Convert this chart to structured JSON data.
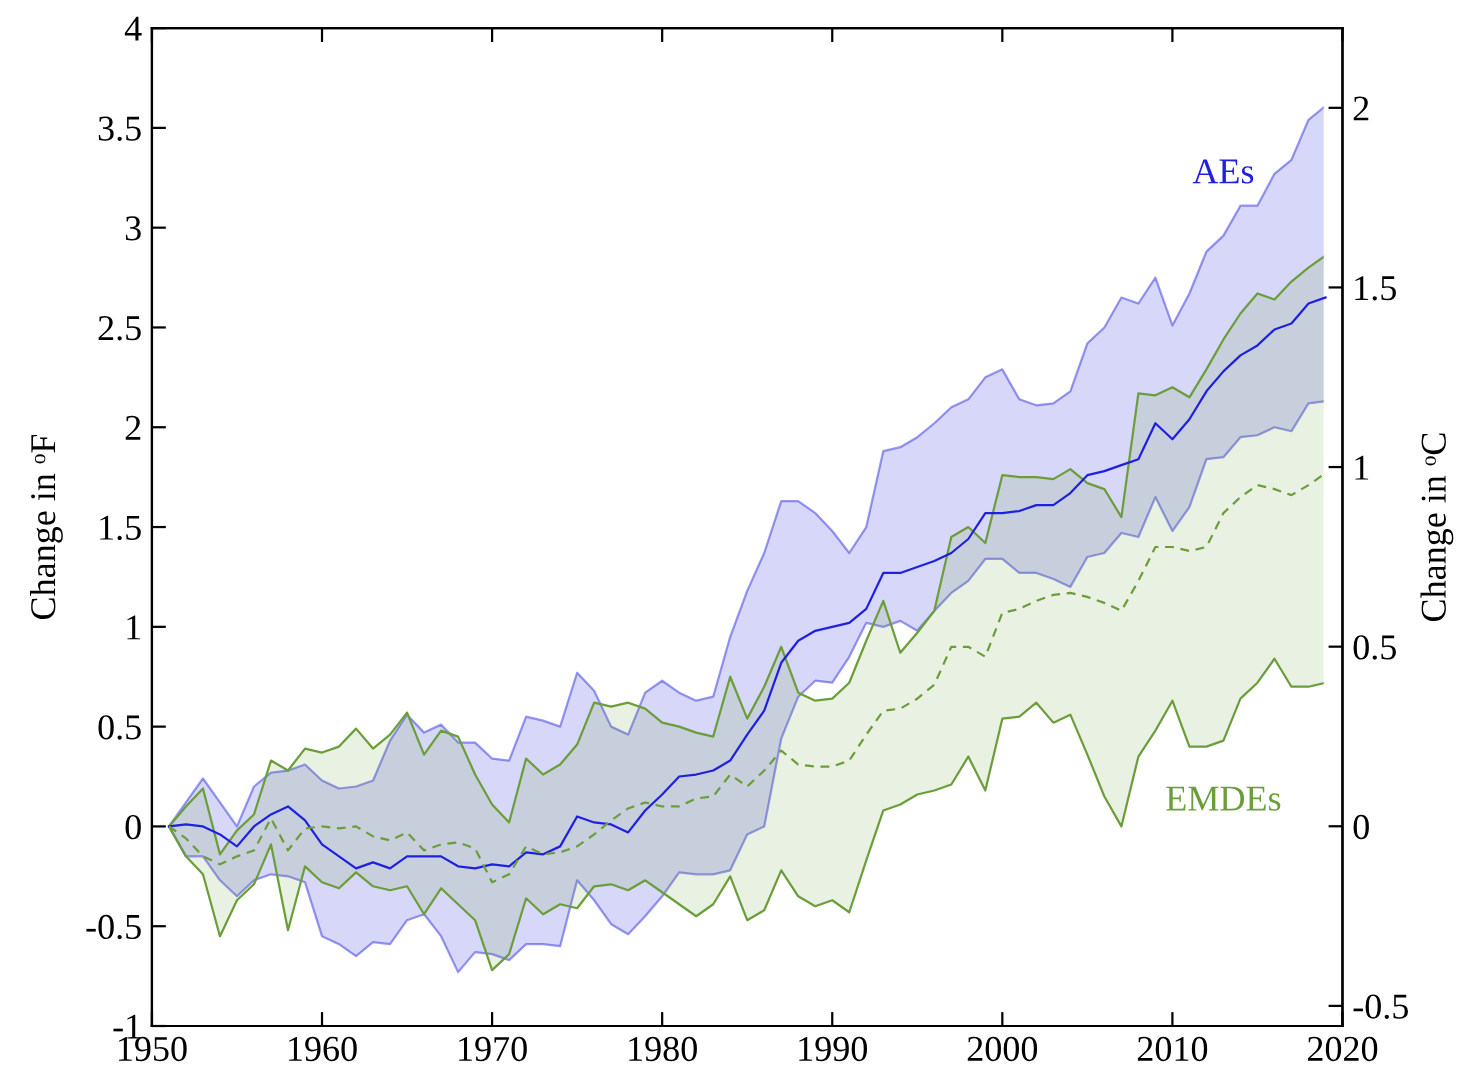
{
  "chart_data": {
    "type": "line",
    "ylabel": "Change in ᵒF",
    "y2label": "Change in ᵒC",
    "xlim": [
      1950,
      2020
    ],
    "xticks": [
      1950,
      1960,
      1970,
      1980,
      1990,
      2000,
      2010,
      2020
    ],
    "ylim": [
      -1,
      4
    ],
    "yticks": [
      -1,
      -0.5,
      0,
      0.5,
      1,
      1.5,
      2,
      2.5,
      3,
      3.5,
      4
    ],
    "y2lim": [
      -0.556,
      2.222
    ],
    "y2ticks": [
      -0.5,
      0,
      0.5,
      1,
      1.5,
      2
    ],
    "x": [
      1951,
      1952,
      1953,
      1954,
      1955,
      1956,
      1957,
      1958,
      1959,
      1960,
      1961,
      1962,
      1963,
      1964,
      1965,
      1966,
      1967,
      1968,
      1969,
      1970,
      1971,
      1972,
      1973,
      1974,
      1975,
      1976,
      1977,
      1978,
      1979,
      1980,
      1981,
      1982,
      1983,
      1984,
      1985,
      1986,
      1987,
      1988,
      1989,
      1990,
      1991,
      1992,
      1993,
      1994,
      1995,
      1996,
      1997,
      1998,
      1999,
      2000,
      2001,
      2002,
      2003,
      2004,
      2005,
      2006,
      2007,
      2008,
      2009,
      2010,
      2011,
      2012,
      2013,
      2014,
      2015,
      2016,
      2017,
      2018,
      2019
    ],
    "series": [
      {
        "name": "AEs",
        "color": "#2020e0",
        "line_style": "solid",
        "values": [
          0,
          0.01,
          0.0,
          -0.04,
          -0.1,
          0.0,
          0.06,
          0.1,
          0.03,
          -0.09,
          -0.15,
          -0.21,
          -0.18,
          -0.21,
          -0.15,
          -0.15,
          -0.15,
          -0.2,
          -0.21,
          -0.19,
          -0.2,
          -0.13,
          -0.14,
          -0.1,
          0.05,
          0.02,
          0.01,
          -0.03,
          0.08,
          0.16,
          0.25,
          0.26,
          0.28,
          0.33,
          0.46,
          0.58,
          0.82,
          0.93,
          0.98,
          1.0,
          1.02,
          1.09,
          1.27,
          1.27,
          1.3,
          1.33,
          1.37,
          1.44,
          1.57,
          1.57,
          1.58,
          1.61,
          1.61,
          1.67,
          1.76,
          1.78,
          1.81,
          1.84,
          2.02,
          1.94,
          2.04,
          2.18,
          2.28,
          2.36,
          2.41,
          2.49,
          2.52,
          2.62,
          2.65
        ],
        "lower": [
          0,
          -0.15,
          -0.15,
          -0.27,
          -0.35,
          -0.27,
          -0.24,
          -0.25,
          -0.28,
          -0.55,
          -0.59,
          -0.65,
          -0.58,
          -0.59,
          -0.47,
          -0.44,
          -0.55,
          -0.73,
          -0.63,
          -0.64,
          -0.67,
          -0.59,
          -0.59,
          -0.6,
          -0.27,
          -0.37,
          -0.49,
          -0.54,
          -0.45,
          -0.35,
          -0.23,
          -0.24,
          -0.24,
          -0.22,
          -0.04,
          0.0,
          0.44,
          0.65,
          0.73,
          0.72,
          0.85,
          1.02,
          1.0,
          1.03,
          0.98,
          1.08,
          1.17,
          1.23,
          1.34,
          1.34,
          1.27,
          1.27,
          1.24,
          1.2,
          1.35,
          1.37,
          1.47,
          1.45,
          1.65,
          1.48,
          1.6,
          1.84,
          1.85,
          1.95,
          1.96,
          2.0,
          1.98,
          2.12,
          2.13
        ],
        "upper": [
          0,
          0.12,
          0.24,
          0.12,
          0.0,
          0.2,
          0.27,
          0.28,
          0.31,
          0.23,
          0.19,
          0.2,
          0.23,
          0.43,
          0.56,
          0.47,
          0.51,
          0.42,
          0.42,
          0.34,
          0.33,
          0.55,
          0.53,
          0.5,
          0.77,
          0.68,
          0.5,
          0.46,
          0.67,
          0.73,
          0.67,
          0.63,
          0.65,
          0.95,
          1.18,
          1.37,
          1.63,
          1.63,
          1.57,
          1.48,
          1.37,
          1.5,
          1.88,
          1.9,
          1.95,
          2.02,
          2.1,
          2.14,
          2.25,
          2.29,
          2.14,
          2.11,
          2.12,
          2.18,
          2.42,
          2.5,
          2.65,
          2.62,
          2.75,
          2.51,
          2.67,
          2.88,
          2.96,
          3.11,
          3.11,
          3.27,
          3.34,
          3.54,
          3.61
        ]
      },
      {
        "name": "EMDEs",
        "color": "#6b9e3a",
        "line_style": "dashed",
        "values": [
          0,
          -0.06,
          -0.15,
          -0.19,
          -0.15,
          -0.12,
          0.04,
          -0.12,
          -0.01,
          0.0,
          -0.01,
          0.0,
          -0.05,
          -0.07,
          -0.03,
          -0.12,
          -0.09,
          -0.08,
          -0.11,
          -0.28,
          -0.24,
          -0.1,
          -0.14,
          -0.13,
          -0.1,
          -0.04,
          0.03,
          0.09,
          0.12,
          0.1,
          0.1,
          0.14,
          0.15,
          0.26,
          0.2,
          0.28,
          0.38,
          0.31,
          0.3,
          0.3,
          0.33,
          0.46,
          0.58,
          0.59,
          0.64,
          0.71,
          0.9,
          0.9,
          0.85,
          1.07,
          1.09,
          1.13,
          1.16,
          1.17,
          1.15,
          1.12,
          1.08,
          1.23,
          1.4,
          1.4,
          1.38,
          1.4,
          1.57,
          1.65,
          1.71,
          1.69,
          1.66,
          1.71,
          1.77
        ],
        "lower": [
          0,
          -0.15,
          -0.24,
          -0.55,
          -0.37,
          -0.29,
          -0.09,
          -0.52,
          -0.2,
          -0.28,
          -0.31,
          -0.23,
          -0.3,
          -0.32,
          -0.3,
          -0.44,
          -0.31,
          -0.39,
          -0.47,
          -0.72,
          -0.64,
          -0.36,
          -0.44,
          -0.39,
          -0.41,
          -0.3,
          -0.29,
          -0.32,
          -0.27,
          -0.33,
          -0.39,
          -0.45,
          -0.39,
          -0.25,
          -0.47,
          -0.42,
          -0.22,
          -0.35,
          -0.4,
          -0.37,
          -0.43,
          -0.17,
          0.08,
          0.11,
          0.16,
          0.18,
          0.21,
          0.35,
          0.18,
          0.54,
          0.55,
          0.62,
          0.52,
          0.56,
          0.36,
          0.15,
          0.0,
          0.35,
          0.48,
          0.63,
          0.4,
          0.4,
          0.43,
          0.64,
          0.72,
          0.84,
          0.7,
          0.7,
          0.72
        ],
        "upper": [
          0,
          0.1,
          0.19,
          -0.14,
          -0.02,
          0.06,
          0.33,
          0.28,
          0.39,
          0.37,
          0.4,
          0.49,
          0.39,
          0.46,
          0.57,
          0.36,
          0.48,
          0.45,
          0.26,
          0.11,
          0.02,
          0.34,
          0.26,
          0.31,
          0.41,
          0.62,
          0.6,
          0.62,
          0.59,
          0.52,
          0.5,
          0.47,
          0.45,
          0.75,
          0.54,
          0.7,
          0.9,
          0.67,
          0.63,
          0.64,
          0.72,
          0.93,
          1.13,
          0.87,
          0.97,
          1.08,
          1.45,
          1.5,
          1.42,
          1.76,
          1.75,
          1.75,
          1.74,
          1.79,
          1.72,
          1.69,
          1.55,
          2.17,
          2.16,
          2.2,
          2.15,
          2.29,
          2.44,
          2.57,
          2.67,
          2.64,
          2.73,
          2.8,
          2.86
        ]
      }
    ]
  }
}
